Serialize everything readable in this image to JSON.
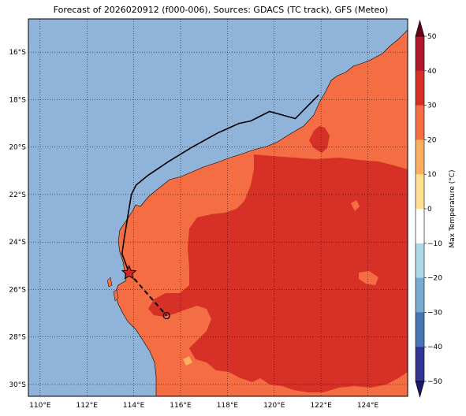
{
  "title": "Forecast of 2026020912 (f000-006), Sources: GDACS (TC track), GFS (Meteo)",
  "map": {
    "lon_range": [
      109.5,
      125.7
    ],
    "lat_range": [
      -30.5,
      -14.6
    ],
    "lat_ticks": [
      {
        "value": -16,
        "label": "16°S"
      },
      {
        "value": -18,
        "label": "18°S"
      },
      {
        "value": -20,
        "label": "20°S"
      },
      {
        "value": -22,
        "label": "22°S"
      },
      {
        "value": -24,
        "label": "24°S"
      },
      {
        "value": -26,
        "label": "26°S"
      },
      {
        "value": -28,
        "label": "28°S"
      },
      {
        "value": -30,
        "label": "30°S"
      }
    ],
    "lon_ticks": [
      {
        "value": 110,
        "label": "110°E"
      },
      {
        "value": 112,
        "label": "112°E"
      },
      {
        "value": 114,
        "label": "114°E"
      },
      {
        "value": 116,
        "label": "116°E"
      },
      {
        "value": 118,
        "label": "118°E"
      },
      {
        "value": 120,
        "label": "120°E"
      },
      {
        "value": 122,
        "label": "122°E"
      },
      {
        "value": 124,
        "label": "124°E"
      }
    ],
    "ocean_color": "#8fb3d9",
    "land_30_40_color": "#d73027",
    "land_20_30_color": "#f46d43",
    "land_10_20_color": "#fdae61"
  },
  "tc_track": {
    "past": [
      [
        121.9,
        -17.8
      ],
      [
        120.9,
        -18.8
      ],
      [
        119.8,
        -18.5
      ],
      [
        119.0,
        -18.9
      ],
      [
        118.5,
        -19.0
      ],
      [
        117.6,
        -19.4
      ],
      [
        116.5,
        -20.0
      ],
      [
        115.5,
        -20.6
      ],
      [
        114.6,
        -21.2
      ],
      [
        114.1,
        -21.6
      ],
      [
        113.9,
        -22.0
      ],
      [
        113.7,
        -23.2
      ],
      [
        113.6,
        -23.8
      ],
      [
        113.5,
        -24.5
      ],
      [
        113.8,
        -25.3
      ]
    ],
    "forecast": [
      [
        113.8,
        -25.3
      ],
      [
        114.6,
        -26.2
      ],
      [
        115.4,
        -27.1
      ]
    ],
    "current_position": [
      113.8,
      -25.3
    ],
    "forecast_position": [
      115.4,
      -27.1
    ],
    "track_color": "#000000",
    "marker_color": "#d62728"
  },
  "colorbar": {
    "label": "Max Temperature (°C)",
    "ticks": [
      "50",
      "40",
      "30",
      "20",
      "10",
      "0",
      "−10",
      "−20",
      "−30",
      "−40",
      "−50"
    ],
    "colors": [
      "#67001f",
      "#b2182b",
      "#d73027",
      "#f46d43",
      "#fdae61",
      "#fee090",
      "#ffffff",
      "#abd9e9",
      "#74add1",
      "#4575b4",
      "#313695",
      "#1a1a6e"
    ]
  }
}
